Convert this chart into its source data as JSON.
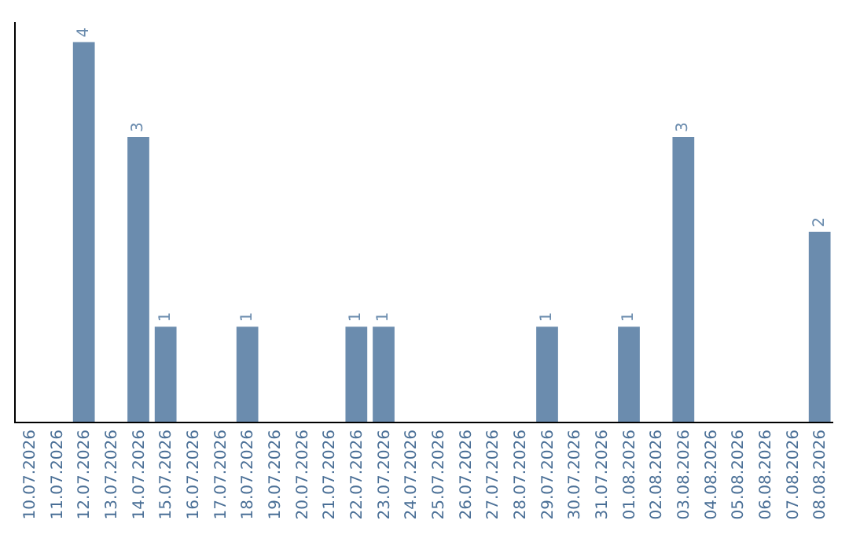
{
  "chart_data": {
    "type": "bar",
    "categories": [
      "10.07.2026",
      "11.07.2026",
      "12.07.2026",
      "13.07.2026",
      "14.07.2026",
      "15.07.2026",
      "16.07.2026",
      "17.07.2026",
      "18.07.2026",
      "19.07.2026",
      "20.07.2026",
      "21.07.2026",
      "22.07.2026",
      "23.07.2026",
      "24.07.2026",
      "25.07.2026",
      "26.07.2026",
      "27.07.2026",
      "28.07.2026",
      "29.07.2026",
      "30.07.2026",
      "31.07.2026",
      "01.08.2026",
      "02.08.2026",
      "03.08.2026",
      "04.08.2026",
      "05.08.2026",
      "06.08.2026",
      "07.08.2026",
      "08.08.2026"
    ],
    "values": [
      0,
      0,
      4,
      0,
      3,
      1,
      0,
      0,
      1,
      0,
      0,
      0,
      1,
      1,
      0,
      0,
      0,
      0,
      0,
      1,
      0,
      0,
      1,
      0,
      3,
      0,
      0,
      0,
      0,
      2
    ],
    "value_labels": [
      null,
      null,
      "4",
      null,
      "3",
      "1",
      null,
      null,
      "1",
      null,
      null,
      null,
      "1",
      "1",
      null,
      null,
      null,
      null,
      null,
      "1",
      null,
      null,
      "1",
      null,
      "3",
      null,
      null,
      null,
      null,
      "2"
    ],
    "color": "#6b8cae",
    "tick_labels": "x"
  }
}
